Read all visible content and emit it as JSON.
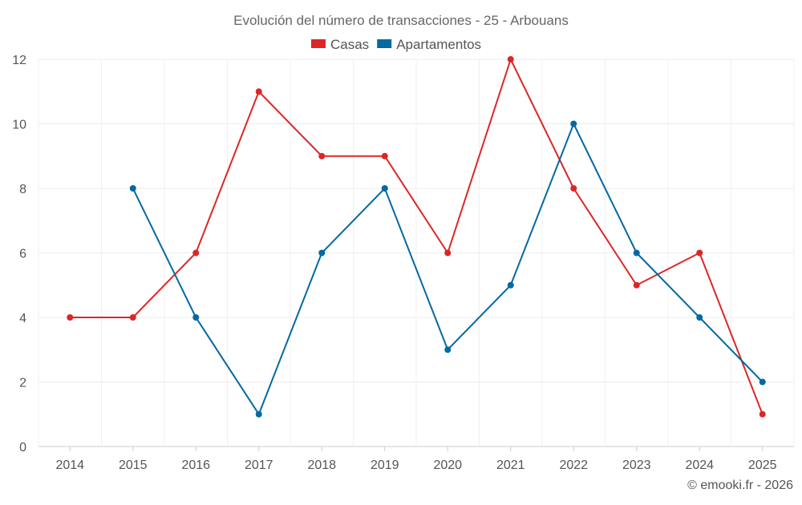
{
  "chart_data": {
    "type": "line",
    "title": "Evolución del número de transacciones - 25 - Arbouans",
    "categories": [
      "2014",
      "2015",
      "2016",
      "2017",
      "2018",
      "2019",
      "2020",
      "2021",
      "2022",
      "2023",
      "2024",
      "2025"
    ],
    "series": [
      {
        "name": "Casas",
        "color": "#dc2626",
        "values": [
          4,
          4,
          6,
          11,
          9,
          9,
          6,
          12,
          8,
          5,
          6,
          1
        ]
      },
      {
        "name": "Apartamentos",
        "color": "#0369a1",
        "values": [
          null,
          8,
          4,
          1,
          6,
          8,
          3,
          5,
          10,
          6,
          4,
          2
        ]
      }
    ],
    "ylim": [
      0,
      12
    ],
    "yticks": [
      0,
      2,
      4,
      6,
      8,
      10,
      12
    ],
    "grid": true,
    "legend": "top-center",
    "xlabel": "",
    "ylabel": ""
  },
  "credit": "© emooki.fr - 2026"
}
